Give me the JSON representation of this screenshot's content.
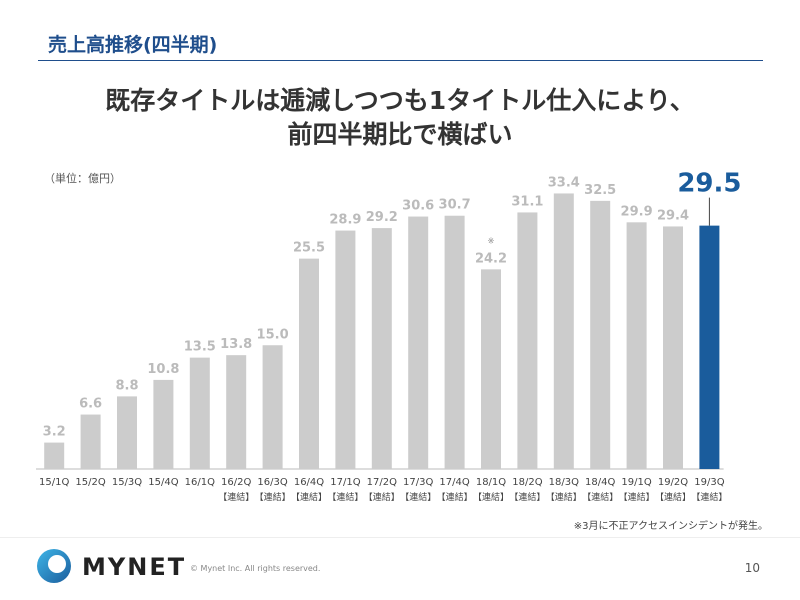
{
  "header": {
    "section_title": "売上高推移(四半期)",
    "headline_line1": "既存タイトルは逓減しつつも1タイトル仕入により、",
    "headline_line2": "前四半期比で横ばい"
  },
  "unit_note": "（単位：億円）",
  "chart_data": {
    "type": "bar",
    "categories": [
      "15/1Q",
      "15/2Q",
      "15/3Q",
      "15/4Q",
      "16/1Q",
      "16/2Q",
      "16/3Q",
      "16/4Q",
      "17/1Q",
      "17/2Q",
      "17/3Q",
      "17/4Q",
      "18/1Q",
      "18/2Q",
      "18/3Q",
      "18/4Q",
      "19/1Q",
      "19/2Q",
      "19/3Q"
    ],
    "sublabels": [
      "",
      "",
      "",
      "",
      "",
      "【連結】",
      "【連結】",
      "【連結】",
      "【連結】",
      "【連結】",
      "【連結】",
      "【連結】",
      "【連結】",
      "【連結】",
      "【連結】",
      "【連結】",
      "【連結】",
      "【連結】",
      "【連結】"
    ],
    "values": [
      3.2,
      6.6,
      8.8,
      10.8,
      13.5,
      13.8,
      15.0,
      25.5,
      28.9,
      29.2,
      30.6,
      30.7,
      24.2,
      31.1,
      33.4,
      32.5,
      29.9,
      29.4,
      29.5
    ],
    "value_labels": [
      "3.2",
      "6.6",
      "8.8",
      "10.8",
      "13.5",
      "13.8",
      "15.0",
      "25.5",
      "28.9",
      "29.2",
      "30.6",
      "30.7",
      "24.2",
      "31.1",
      "33.4",
      "32.5",
      "29.9",
      "29.4",
      "29.5"
    ],
    "bar_mark": "※",
    "bar_mark_index": 12,
    "highlight_index": 18,
    "ylim": [
      0,
      35
    ],
    "grid": false,
    "legend": "none",
    "colors": {
      "bar": "#cccccc",
      "highlight": "#1a5c9c",
      "label": "#bbbbbb",
      "highlight_label": "#1a5c9c",
      "axis": "#bbbbbb"
    }
  },
  "footnote": "※3月に不正アクセスインシデントが発生。",
  "footer": {
    "logo_text": "MYNET",
    "logo_icon": "mynet-ring-logo-icon",
    "copyright": "© Mynet Inc. All rights reserved.",
    "page_number": "10"
  }
}
